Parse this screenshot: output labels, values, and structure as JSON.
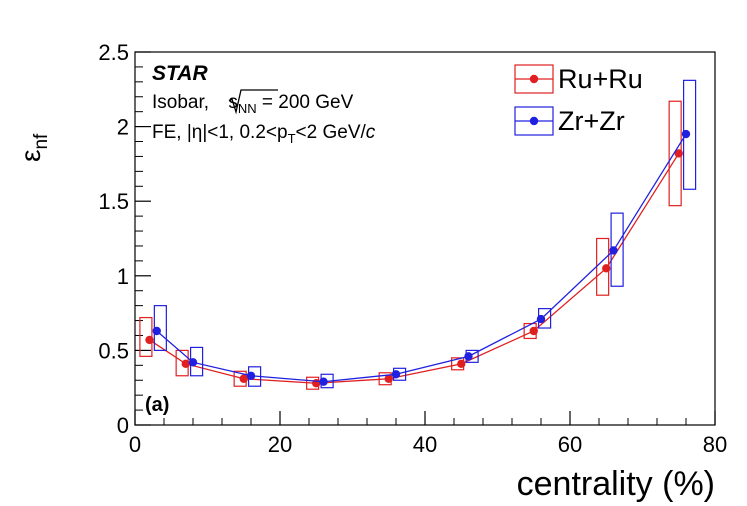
{
  "chart_data": {
    "type": "scatter",
    "xlabel": "centrality (%)",
    "ylabel_main": "ε",
    "ylabel_sub": "nf",
    "xlim": [
      0,
      80
    ],
    "ylim": [
      0,
      2.5
    ],
    "x_ticks": [
      0,
      20,
      40,
      60,
      80
    ],
    "y_ticks": [
      0,
      0.5,
      1,
      1.5,
      2,
      2.5
    ],
    "y_tick_labels": [
      "0",
      "0.5",
      "1",
      "1.5",
      "2",
      "2.5"
    ],
    "grid": false,
    "legend_position": "top-right",
    "panel_label": "(a)",
    "annotations": {
      "experiment": "STAR",
      "line2": {
        "prefix": "Isobar, ",
        "sqrt_s": "s",
        "sub": "NN",
        "suffix": " = 200 GeV"
      },
      "line3": {
        "prefix": "FE, |η|<1, 0.2<p",
        "sub": "T",
        "mid": "<2 GeV/",
        "italic": "c"
      }
    },
    "series": [
      {
        "name": "Ru+Ru",
        "color": "#e02020",
        "x": [
          2,
          7,
          15,
          25,
          35,
          45,
          55,
          65,
          75
        ],
        "y": [
          0.57,
          0.41,
          0.31,
          0.28,
          0.31,
          0.41,
          0.63,
          1.05,
          1.82
        ],
        "sys_low": [
          0.46,
          0.33,
          0.26,
          0.24,
          0.27,
          0.37,
          0.58,
          0.87,
          1.47
        ],
        "sys_high": [
          0.72,
          0.5,
          0.36,
          0.32,
          0.35,
          0.45,
          0.68,
          1.25,
          2.17
        ],
        "box_offset": -0.6
      },
      {
        "name": "Zr+Zr",
        "color": "#2020e0",
        "x": [
          3,
          8,
          16,
          26,
          36,
          46,
          56,
          66,
          76
        ],
        "y": [
          0.63,
          0.42,
          0.33,
          0.29,
          0.34,
          0.46,
          0.71,
          1.17,
          1.95
        ],
        "sys_low": [
          0.5,
          0.33,
          0.26,
          0.25,
          0.3,
          0.42,
          0.65,
          0.93,
          1.58
        ],
        "sys_high": [
          0.8,
          0.52,
          0.39,
          0.34,
          0.38,
          0.5,
          0.78,
          1.42,
          2.31
        ],
        "box_offset": 0.6
      }
    ]
  }
}
